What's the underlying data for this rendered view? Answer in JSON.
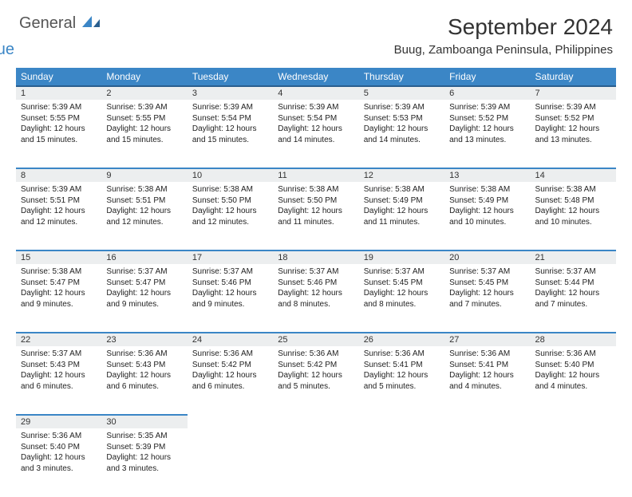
{
  "logo": {
    "part1": "General",
    "part2": "Blue"
  },
  "title": "September 2024",
  "location": "Buug, Zamboanga Peninsula, Philippines",
  "colors": {
    "header_bg": "#3b86c6",
    "header_border": "#2a5f8f",
    "daynum_bg": "#eceeef",
    "text": "#222222"
  },
  "weekdays": [
    "Sunday",
    "Monday",
    "Tuesday",
    "Wednesday",
    "Thursday",
    "Friday",
    "Saturday"
  ],
  "weeks": [
    [
      {
        "n": "1",
        "sr": "Sunrise: 5:39 AM",
        "ss": "Sunset: 5:55 PM",
        "d1": "Daylight: 12 hours",
        "d2": "and 15 minutes."
      },
      {
        "n": "2",
        "sr": "Sunrise: 5:39 AM",
        "ss": "Sunset: 5:55 PM",
        "d1": "Daylight: 12 hours",
        "d2": "and 15 minutes."
      },
      {
        "n": "3",
        "sr": "Sunrise: 5:39 AM",
        "ss": "Sunset: 5:54 PM",
        "d1": "Daylight: 12 hours",
        "d2": "and 15 minutes."
      },
      {
        "n": "4",
        "sr": "Sunrise: 5:39 AM",
        "ss": "Sunset: 5:54 PM",
        "d1": "Daylight: 12 hours",
        "d2": "and 14 minutes."
      },
      {
        "n": "5",
        "sr": "Sunrise: 5:39 AM",
        "ss": "Sunset: 5:53 PM",
        "d1": "Daylight: 12 hours",
        "d2": "and 14 minutes."
      },
      {
        "n": "6",
        "sr": "Sunrise: 5:39 AM",
        "ss": "Sunset: 5:52 PM",
        "d1": "Daylight: 12 hours",
        "d2": "and 13 minutes."
      },
      {
        "n": "7",
        "sr": "Sunrise: 5:39 AM",
        "ss": "Sunset: 5:52 PM",
        "d1": "Daylight: 12 hours",
        "d2": "and 13 minutes."
      }
    ],
    [
      {
        "n": "8",
        "sr": "Sunrise: 5:39 AM",
        "ss": "Sunset: 5:51 PM",
        "d1": "Daylight: 12 hours",
        "d2": "and 12 minutes."
      },
      {
        "n": "9",
        "sr": "Sunrise: 5:38 AM",
        "ss": "Sunset: 5:51 PM",
        "d1": "Daylight: 12 hours",
        "d2": "and 12 minutes."
      },
      {
        "n": "10",
        "sr": "Sunrise: 5:38 AM",
        "ss": "Sunset: 5:50 PM",
        "d1": "Daylight: 12 hours",
        "d2": "and 12 minutes."
      },
      {
        "n": "11",
        "sr": "Sunrise: 5:38 AM",
        "ss": "Sunset: 5:50 PM",
        "d1": "Daylight: 12 hours",
        "d2": "and 11 minutes."
      },
      {
        "n": "12",
        "sr": "Sunrise: 5:38 AM",
        "ss": "Sunset: 5:49 PM",
        "d1": "Daylight: 12 hours",
        "d2": "and 11 minutes."
      },
      {
        "n": "13",
        "sr": "Sunrise: 5:38 AM",
        "ss": "Sunset: 5:49 PM",
        "d1": "Daylight: 12 hours",
        "d2": "and 10 minutes."
      },
      {
        "n": "14",
        "sr": "Sunrise: 5:38 AM",
        "ss": "Sunset: 5:48 PM",
        "d1": "Daylight: 12 hours",
        "d2": "and 10 minutes."
      }
    ],
    [
      {
        "n": "15",
        "sr": "Sunrise: 5:38 AM",
        "ss": "Sunset: 5:47 PM",
        "d1": "Daylight: 12 hours",
        "d2": "and 9 minutes."
      },
      {
        "n": "16",
        "sr": "Sunrise: 5:37 AM",
        "ss": "Sunset: 5:47 PM",
        "d1": "Daylight: 12 hours",
        "d2": "and 9 minutes."
      },
      {
        "n": "17",
        "sr": "Sunrise: 5:37 AM",
        "ss": "Sunset: 5:46 PM",
        "d1": "Daylight: 12 hours",
        "d2": "and 9 minutes."
      },
      {
        "n": "18",
        "sr": "Sunrise: 5:37 AM",
        "ss": "Sunset: 5:46 PM",
        "d1": "Daylight: 12 hours",
        "d2": "and 8 minutes."
      },
      {
        "n": "19",
        "sr": "Sunrise: 5:37 AM",
        "ss": "Sunset: 5:45 PM",
        "d1": "Daylight: 12 hours",
        "d2": "and 8 minutes."
      },
      {
        "n": "20",
        "sr": "Sunrise: 5:37 AM",
        "ss": "Sunset: 5:45 PM",
        "d1": "Daylight: 12 hours",
        "d2": "and 7 minutes."
      },
      {
        "n": "21",
        "sr": "Sunrise: 5:37 AM",
        "ss": "Sunset: 5:44 PM",
        "d1": "Daylight: 12 hours",
        "d2": "and 7 minutes."
      }
    ],
    [
      {
        "n": "22",
        "sr": "Sunrise: 5:37 AM",
        "ss": "Sunset: 5:43 PM",
        "d1": "Daylight: 12 hours",
        "d2": "and 6 minutes."
      },
      {
        "n": "23",
        "sr": "Sunrise: 5:36 AM",
        "ss": "Sunset: 5:43 PM",
        "d1": "Daylight: 12 hours",
        "d2": "and 6 minutes."
      },
      {
        "n": "24",
        "sr": "Sunrise: 5:36 AM",
        "ss": "Sunset: 5:42 PM",
        "d1": "Daylight: 12 hours",
        "d2": "and 6 minutes."
      },
      {
        "n": "25",
        "sr": "Sunrise: 5:36 AM",
        "ss": "Sunset: 5:42 PM",
        "d1": "Daylight: 12 hours",
        "d2": "and 5 minutes."
      },
      {
        "n": "26",
        "sr": "Sunrise: 5:36 AM",
        "ss": "Sunset: 5:41 PM",
        "d1": "Daylight: 12 hours",
        "d2": "and 5 minutes."
      },
      {
        "n": "27",
        "sr": "Sunrise: 5:36 AM",
        "ss": "Sunset: 5:41 PM",
        "d1": "Daylight: 12 hours",
        "d2": "and 4 minutes."
      },
      {
        "n": "28",
        "sr": "Sunrise: 5:36 AM",
        "ss": "Sunset: 5:40 PM",
        "d1": "Daylight: 12 hours",
        "d2": "and 4 minutes."
      }
    ],
    [
      {
        "n": "29",
        "sr": "Sunrise: 5:36 AM",
        "ss": "Sunset: 5:40 PM",
        "d1": "Daylight: 12 hours",
        "d2": "and 3 minutes."
      },
      {
        "n": "30",
        "sr": "Sunrise: 5:35 AM",
        "ss": "Sunset: 5:39 PM",
        "d1": "Daylight: 12 hours",
        "d2": "and 3 minutes."
      },
      null,
      null,
      null,
      null,
      null
    ]
  ]
}
